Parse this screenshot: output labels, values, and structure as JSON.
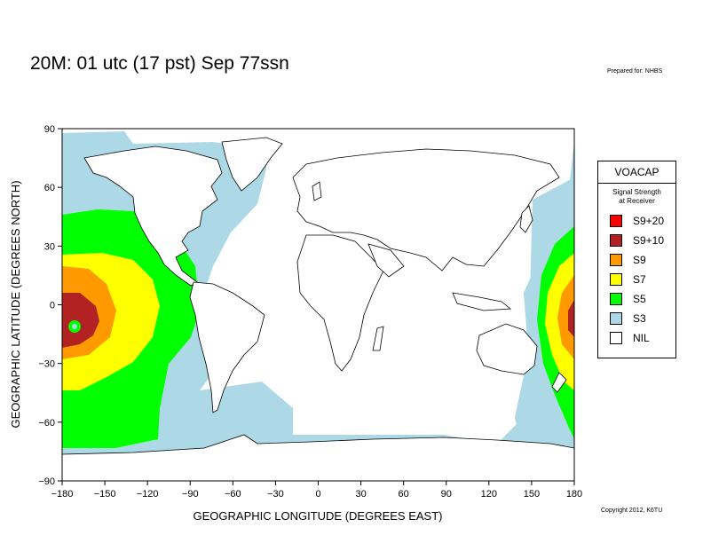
{
  "header": {
    "title": "20M:  01 utc (17 pst) Sep 77ssn",
    "prepared_for": "Prepared for: NHBS",
    "copyright": "Copyright 2012, K6TU"
  },
  "map": {
    "xlabel": "GEOGRAPHIC LONGITUDE (DEGREES EAST)",
    "ylabel": "GEOGRAPHIC LATITUDE (DEGREES NORTH)",
    "xticks": [
      -180,
      -150,
      -120,
      -90,
      -60,
      -30,
      0,
      30,
      60,
      90,
      120,
      150,
      180
    ],
    "yticks": [
      90,
      60,
      30,
      0,
      -30,
      -60,
      -90
    ],
    "xlim": [
      -180,
      180
    ],
    "ylim": [
      -90,
      90
    ],
    "tx_location_icon": "transmitter-marker",
    "signal_zones_description": "Concentric coverage from a transmitter in the central Pacific near 10S 170W; same zones wrap at the date line."
  },
  "legend": {
    "title": "VOACAP",
    "subtitle_line1": "Signal Strength",
    "subtitle_line2": "at Receiver",
    "items": [
      {
        "label": "S9+20",
        "color": "#ff0000"
      },
      {
        "label": "S9+10",
        "color": "#b22222"
      },
      {
        "label": "S9",
        "color": "#ff9900"
      },
      {
        "label": "S7",
        "color": "#ffff00"
      },
      {
        "label": "S5",
        "color": "#00ff00"
      },
      {
        "label": "S3",
        "color": "#add8e6"
      },
      {
        "label": "NIL",
        "color": "#ffffff"
      }
    ]
  }
}
